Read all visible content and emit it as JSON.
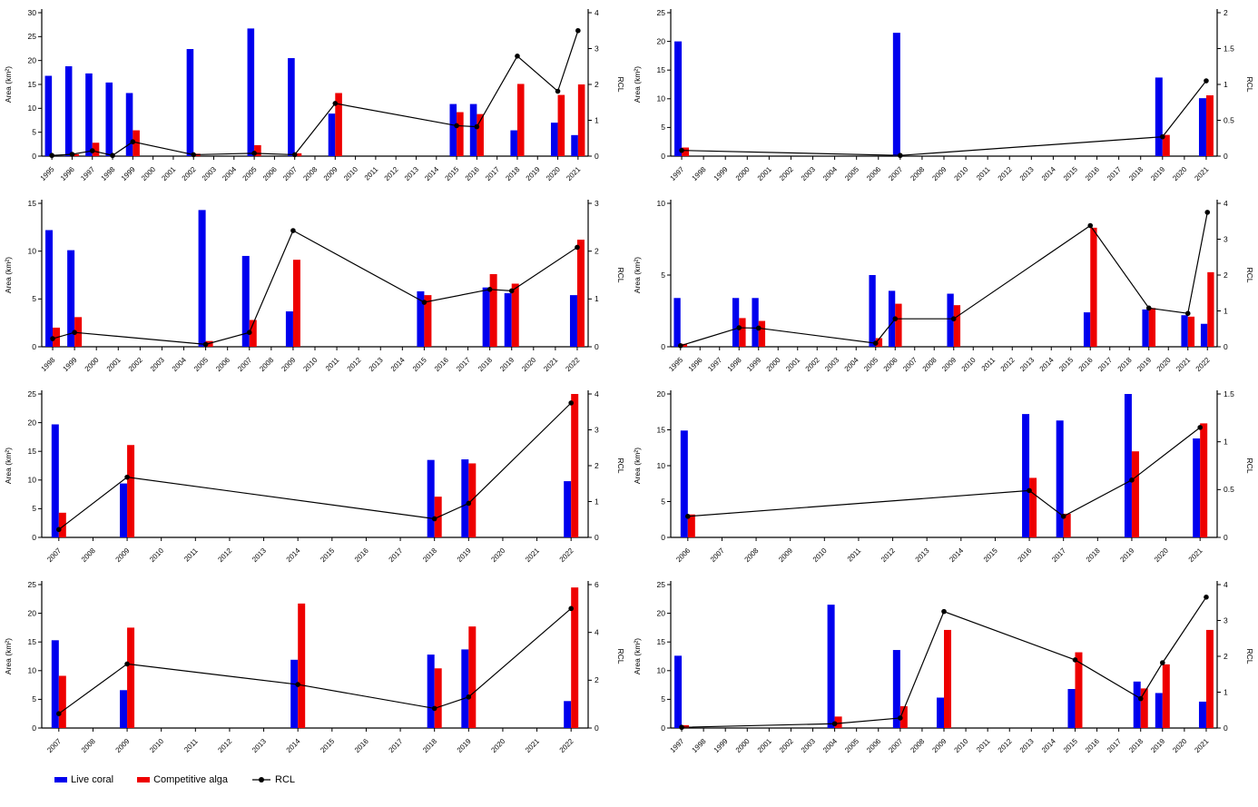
{
  "legend": {
    "items": [
      {
        "label": "Live coral",
        "color": "#0000EE",
        "marker": "bar"
      },
      {
        "label": "Competitive alga",
        "color": "#EE0000",
        "marker": "bar"
      },
      {
        "label": "RCL",
        "color": "#000000",
        "marker": "line-dot"
      }
    ]
  },
  "axis": {
    "ylabel": "Area (km²)",
    "y2label": "RCL"
  },
  "colors": {
    "live_coral": "#0000EE",
    "competitive_alga": "#EE0000",
    "rcl_line": "#000000",
    "axis": "#000000"
  },
  "chart_data": [
    {
      "panel": 1,
      "type": "bar+line",
      "ylabel": "Area (km²)",
      "y2label": "RCL",
      "ylim": [
        0,
        30
      ],
      "ystep": 5,
      "y2lim": [
        0,
        4
      ],
      "y2step": 1,
      "categories": [
        "1995",
        "1996",
        "1997",
        "1998",
        "1999",
        "2000",
        "2001",
        "2002",
        "2003",
        "2004",
        "2005",
        "2006",
        "2007",
        "2008",
        "2009",
        "2010",
        "2011",
        "2012",
        "2013",
        "2014",
        "2015",
        "2016",
        "2017",
        "2018",
        "2019",
        "2020",
        "2021"
      ],
      "points": [
        {
          "year": "1995",
          "live_coral": 16.8,
          "competitive_alga": 0,
          "rcl": 0.02
        },
        {
          "year": "1996",
          "live_coral": 18.8,
          "competitive_alga": 0.4,
          "rcl": 0.05
        },
        {
          "year": "1997",
          "live_coral": 17.3,
          "competitive_alga": 2.8,
          "rcl": 0.15
        },
        {
          "year": "1998",
          "live_coral": 15.4,
          "competitive_alga": 0,
          "rcl": 0.02
        },
        {
          "year": "1999",
          "live_coral": 13.2,
          "competitive_alga": 5.4,
          "rcl": 0.4
        },
        {
          "year": "2002",
          "live_coral": 22.4,
          "competitive_alga": 0.5,
          "rcl": 0.04
        },
        {
          "year": "2005",
          "live_coral": 26.7,
          "competitive_alga": 2.3,
          "rcl": 0.08
        },
        {
          "year": "2007",
          "live_coral": 20.5,
          "competitive_alga": 0.6,
          "rcl": 0.04
        },
        {
          "year": "2009",
          "live_coral": 8.9,
          "competitive_alga": 13.2,
          "rcl": 1.47
        },
        {
          "year": "2015",
          "live_coral": 10.9,
          "competitive_alga": 9.2,
          "rcl": 0.85
        },
        {
          "year": "2016",
          "live_coral": 10.9,
          "competitive_alga": 8.8,
          "rcl": 0.82
        },
        {
          "year": "2018",
          "live_coral": 5.4,
          "competitive_alga": 15.1,
          "rcl": 2.79
        },
        {
          "year": "2020",
          "live_coral": 7.0,
          "competitive_alga": 12.8,
          "rcl": 1.81
        },
        {
          "year": "2021",
          "live_coral": 4.4,
          "competitive_alga": 15.0,
          "rcl": 3.5
        }
      ]
    },
    {
      "panel": 2,
      "type": "bar+line",
      "ylabel": "Area (km²)",
      "y2label": "RCL",
      "ylim": [
        0,
        25
      ],
      "ystep": 5,
      "y2lim": [
        0,
        2
      ],
      "y2step": 0.5,
      "categories": [
        "1997",
        "1998",
        "1999",
        "2000",
        "2001",
        "2002",
        "2003",
        "2004",
        "2005",
        "2006",
        "2007",
        "2008",
        "2009",
        "2010",
        "2011",
        "2012",
        "2013",
        "2014",
        "2015",
        "2016",
        "2017",
        "2018",
        "2019",
        "2020",
        "2021"
      ],
      "points": [
        {
          "year": "1997",
          "live_coral": 20.0,
          "competitive_alga": 1.5,
          "rcl": 0.08
        },
        {
          "year": "2007",
          "live_coral": 21.5,
          "competitive_alga": 0,
          "rcl": 0.01
        },
        {
          "year": "2019",
          "live_coral": 13.7,
          "competitive_alga": 3.7,
          "rcl": 0.27
        },
        {
          "year": "2021",
          "live_coral": 10.1,
          "competitive_alga": 10.6,
          "rcl": 1.05
        }
      ]
    },
    {
      "panel": 3,
      "type": "bar+line",
      "ylabel": "Area (km²)",
      "y2label": "RCL",
      "ylim": [
        0,
        15
      ],
      "ystep": 5,
      "y2lim": [
        0,
        3
      ],
      "y2step": 1,
      "categories": [
        "1998",
        "1999",
        "2000",
        "2001",
        "2002",
        "2003",
        "2004",
        "2005",
        "2006",
        "2007",
        "2008",
        "2009",
        "2010",
        "2011",
        "2012",
        "2013",
        "2014",
        "2015",
        "2016",
        "2017",
        "2018",
        "2019",
        "2020",
        "2021",
        "2022"
      ],
      "points": [
        {
          "year": "1998",
          "live_coral": 12.2,
          "competitive_alga": 2.0,
          "rcl": 0.17
        },
        {
          "year": "1999",
          "live_coral": 10.1,
          "competitive_alga": 3.1,
          "rcl": 0.3
        },
        {
          "year": "2005",
          "live_coral": 14.3,
          "competitive_alga": 0.6,
          "rcl": 0.05
        },
        {
          "year": "2007",
          "live_coral": 9.5,
          "competitive_alga": 2.8,
          "rcl": 0.3
        },
        {
          "year": "2009",
          "live_coral": 3.7,
          "competitive_alga": 9.1,
          "rcl": 2.43
        },
        {
          "year": "2015",
          "live_coral": 5.8,
          "competitive_alga": 5.4,
          "rcl": 0.93
        },
        {
          "year": "2018",
          "live_coral": 6.2,
          "competitive_alga": 7.6,
          "rcl": 1.2
        },
        {
          "year": "2019",
          "live_coral": 5.6,
          "competitive_alga": 6.6,
          "rcl": 1.17
        },
        {
          "year": "2022",
          "live_coral": 5.4,
          "competitive_alga": 11.2,
          "rcl": 2.08
        }
      ]
    },
    {
      "panel": 4,
      "type": "bar+line",
      "ylabel": "Area (km²)",
      "y2label": "RCL",
      "ylim": [
        0,
        10
      ],
      "ystep": 5,
      "y2lim": [
        0,
        4
      ],
      "y2step": 1,
      "categories": [
        "1995",
        "1996",
        "1997",
        "1998",
        "1999",
        "2000",
        "2001",
        "2002",
        "2003",
        "2004",
        "2005",
        "2006",
        "2007",
        "2008",
        "2009",
        "2010",
        "2011",
        "2012",
        "2013",
        "2014",
        "2015",
        "2016",
        "2017",
        "2018",
        "2019",
        "2020",
        "2021",
        "2022"
      ],
      "points": [
        {
          "year": "1995",
          "live_coral": 3.4,
          "competitive_alga": 0.2,
          "rcl": 0.03
        },
        {
          "year": "1998",
          "live_coral": 3.4,
          "competitive_alga": 2.0,
          "rcl": 0.53
        },
        {
          "year": "1999",
          "live_coral": 3.4,
          "competitive_alga": 1.8,
          "rcl": 0.52
        },
        {
          "year": "2005",
          "live_coral": 5.0,
          "competitive_alga": 0.6,
          "rcl": 0.1
        },
        {
          "year": "2006",
          "live_coral": 3.9,
          "competitive_alga": 3.0,
          "rcl": 0.78
        },
        {
          "year": "2009",
          "live_coral": 3.7,
          "competitive_alga": 2.9,
          "rcl": 0.78
        },
        {
          "year": "2016",
          "live_coral": 2.4,
          "competitive_alga": 8.3,
          "rcl": 3.38
        },
        {
          "year": "2019",
          "live_coral": 2.6,
          "competitive_alga": 2.7,
          "rcl": 1.08
        },
        {
          "year": "2021",
          "live_coral": 2.2,
          "competitive_alga": 2.1,
          "rcl": 0.93
        },
        {
          "year": "2022",
          "live_coral": 1.6,
          "competitive_alga": 5.2,
          "rcl": 3.75
        }
      ]
    },
    {
      "panel": 5,
      "type": "bar+line",
      "ylabel": "Area (km²)",
      "y2label": "RCL",
      "ylim": [
        0,
        25
      ],
      "ystep": 5,
      "y2lim": [
        0,
        4
      ],
      "y2step": 1,
      "categories": [
        "2007",
        "2008",
        "2009",
        "2010",
        "2011",
        "2012",
        "2013",
        "2014",
        "2015",
        "2016",
        "2017",
        "2018",
        "2019",
        "2020",
        "2021",
        "2022"
      ],
      "points": [
        {
          "year": "2007",
          "live_coral": 19.7,
          "competitive_alga": 4.3,
          "rcl": 0.22
        },
        {
          "year": "2009",
          "live_coral": 9.4,
          "competitive_alga": 16.1,
          "rcl": 1.68
        },
        {
          "year": "2018",
          "live_coral": 13.5,
          "competitive_alga": 7.1,
          "rcl": 0.52
        },
        {
          "year": "2019",
          "live_coral": 13.6,
          "competitive_alga": 12.9,
          "rcl": 0.95
        },
        {
          "year": "2022",
          "live_coral": 9.8,
          "competitive_alga": 25.0,
          "rcl": 3.75
        }
      ]
    },
    {
      "panel": 6,
      "type": "bar+line",
      "ylabel": "Area (km²)",
      "y2label": "RCL",
      "ylim": [
        0,
        20
      ],
      "ystep": 5,
      "y2lim": [
        0,
        1.5
      ],
      "y2step": 0.5,
      "categories": [
        "2006",
        "2007",
        "2008",
        "2009",
        "2010",
        "2011",
        "2012",
        "2013",
        "2014",
        "2015",
        "2016",
        "2017",
        "2018",
        "2019",
        "2020",
        "2021"
      ],
      "points": [
        {
          "year": "2006",
          "live_coral": 14.9,
          "competitive_alga": 3.2,
          "rcl": 0.22
        },
        {
          "year": "2016",
          "live_coral": 17.2,
          "competitive_alga": 8.3,
          "rcl": 0.49
        },
        {
          "year": "2017",
          "live_coral": 16.3,
          "competitive_alga": 3.3,
          "rcl": 0.22
        },
        {
          "year": "2019",
          "live_coral": 20.0,
          "competitive_alga": 12.0,
          "rcl": 0.6
        },
        {
          "year": "2021",
          "live_coral": 13.8,
          "competitive_alga": 15.9,
          "rcl": 1.15
        }
      ]
    },
    {
      "panel": 7,
      "type": "bar+line",
      "ylabel": "Area (km²)",
      "y2label": "RCL",
      "ylim": [
        0,
        25
      ],
      "ystep": 5,
      "y2lim": [
        0,
        6
      ],
      "y2step": 2,
      "categories": [
        "2007",
        "2008",
        "2009",
        "2010",
        "2011",
        "2012",
        "2013",
        "2014",
        "2015",
        "2016",
        "2017",
        "2018",
        "2019",
        "2020",
        "2021",
        "2022"
      ],
      "points": [
        {
          "year": "2007",
          "live_coral": 15.3,
          "competitive_alga": 9.1,
          "rcl": 0.6
        },
        {
          "year": "2009",
          "live_coral": 6.6,
          "competitive_alga": 17.5,
          "rcl": 2.68
        },
        {
          "year": "2014",
          "live_coral": 11.9,
          "competitive_alga": 21.7,
          "rcl": 1.82
        },
        {
          "year": "2018",
          "live_coral": 12.8,
          "competitive_alga": 10.4,
          "rcl": 0.82
        },
        {
          "year": "2019",
          "live_coral": 13.7,
          "competitive_alga": 17.7,
          "rcl": 1.3
        },
        {
          "year": "2022",
          "live_coral": 4.7,
          "competitive_alga": 24.5,
          "rcl": 5.0
        }
      ]
    },
    {
      "panel": 8,
      "type": "bar+line",
      "ylabel": "Area (km²)",
      "y2label": "RCL",
      "ylim": [
        0,
        25
      ],
      "ystep": 5,
      "y2lim": [
        0,
        4
      ],
      "y2step": 1,
      "categories": [
        "1997",
        "1998",
        "1999",
        "2000",
        "2001",
        "2002",
        "2003",
        "2004",
        "2005",
        "2006",
        "2007",
        "2008",
        "2009",
        "2010",
        "2011",
        "2012",
        "2013",
        "2014",
        "2015",
        "2016",
        "2017",
        "2018",
        "2019",
        "2020",
        "2021"
      ],
      "points": [
        {
          "year": "1997",
          "live_coral": 12.6,
          "competitive_alga": 0.5,
          "rcl": 0.02
        },
        {
          "year": "2004",
          "live_coral": 21.5,
          "competitive_alga": 2.0,
          "rcl": 0.12
        },
        {
          "year": "2007",
          "live_coral": 13.6,
          "competitive_alga": 3.8,
          "rcl": 0.28
        },
        {
          "year": "2009",
          "live_coral": 5.3,
          "competitive_alga": 17.1,
          "rcl": 3.25
        },
        {
          "year": "2015",
          "live_coral": 6.8,
          "competitive_alga": 13.2,
          "rcl": 1.9
        },
        {
          "year": "2018",
          "live_coral": 8.1,
          "competitive_alga": 6.9,
          "rcl": 0.82
        },
        {
          "year": "2019",
          "live_coral": 6.1,
          "competitive_alga": 11.1,
          "rcl": 1.82
        },
        {
          "year": "2021",
          "live_coral": 4.6,
          "competitive_alga": 17.1,
          "rcl": 3.65
        }
      ]
    }
  ]
}
